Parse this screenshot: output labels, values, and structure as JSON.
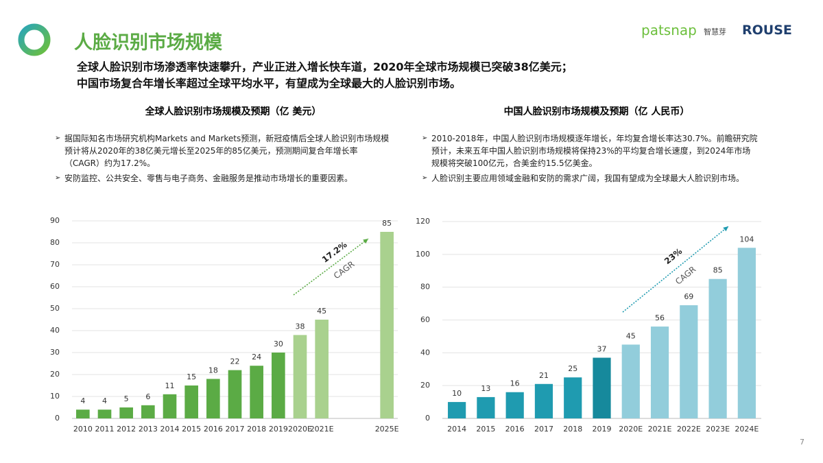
{
  "header": {
    "title": "人脸识别市场规模",
    "subtitle_lines": [
      "全球人脸识别市场渗透率快速攀升，产业正进入增长快车道，2020年全球市场规模已突破38亿美元；",
      "中国市场复合年增长率超过全球平均水平，有望成为全球最大的人脸识别市场。"
    ],
    "logo_patsnap": "patsnap",
    "logo_patsnap_cn": "智慧芽",
    "logo_rouse": "ROUSE"
  },
  "page_number": "7",
  "chart_data": [
    {
      "type": "bar",
      "title": "全球人脸识别市场规模及预期（亿 美元）",
      "bullets": [
        "据国际知名市场研究机构Markets and Markets预测，新冠疫情后全球人脸识别市场规模预计将从2020年的38亿美元增长至2025年的85亿美元，预测期间复合年增长率（CAGR）约为17.2%。",
        "安防监控、公共安全、零售与电子商务、金融服务是推动市场增长的重要因素。"
      ],
      "categories": [
        "2010",
        "2011",
        "2012",
        "2013",
        "2014",
        "2015",
        "2016",
        "2017",
        "2018",
        "2019",
        "2020E",
        "2021E",
        null,
        null,
        "2025E"
      ],
      "values": [
        4,
        4,
        5,
        6,
        11,
        15,
        18,
        22,
        24,
        30,
        38,
        45,
        null,
        null,
        85
      ],
      "colors": [
        "#5bab45",
        "#5bab45",
        "#5bab45",
        "#5bab45",
        "#5bab45",
        "#5bab45",
        "#5bab45",
        "#5bab45",
        "#5bab45",
        "#5bab45",
        "#a9d18e",
        "#a9d18e",
        null,
        null,
        "#a9d18e"
      ],
      "ylim": [
        0,
        90
      ],
      "yticks": [
        0,
        10,
        20,
        30,
        40,
        50,
        60,
        70,
        80,
        90
      ],
      "grid": true,
      "annotations": [
        "17.2%",
        "CAGR"
      ],
      "arrow_color": "#5bab45"
    },
    {
      "type": "bar",
      "title": "中国人脸识别市场规模及预期（亿 人民币）",
      "bullets": [
        "2010-2018年，中国人脸识别市场规模逐年增长，年均复合增长率达30.7%。前瞻研究院预计，未来五年中国人脸识别市场规模将保持23%的平均复合增长速度，到2024年市场规模将突破100亿元，合美金约15.5亿美金。",
        "人脸识别主要应用领域金融和安防的需求广阔，我国有望成为全球最大人脸识别市场。"
      ],
      "categories": [
        "2014",
        "2015",
        "2016",
        "2017",
        "2018",
        "2019",
        "2020E",
        "2021E",
        "2022E",
        "2023E",
        "2024E"
      ],
      "values": [
        10,
        13,
        16,
        21,
        25,
        37,
        45,
        56,
        69,
        85,
        104
      ],
      "colors": [
        "#1f9bb0",
        "#1f9bb0",
        "#1f9bb0",
        "#1f9bb0",
        "#1f9bb0",
        "#16899c",
        "#92cddb",
        "#92cddb",
        "#92cddb",
        "#92cddb",
        "#92cddb"
      ],
      "ylim": [
        0,
        120
      ],
      "yticks": [
        0,
        20,
        40,
        60,
        80,
        100,
        120
      ],
      "grid": true,
      "annotations": [
        "23%",
        "CAGR"
      ],
      "arrow_color": "#1f9bb0"
    }
  ]
}
